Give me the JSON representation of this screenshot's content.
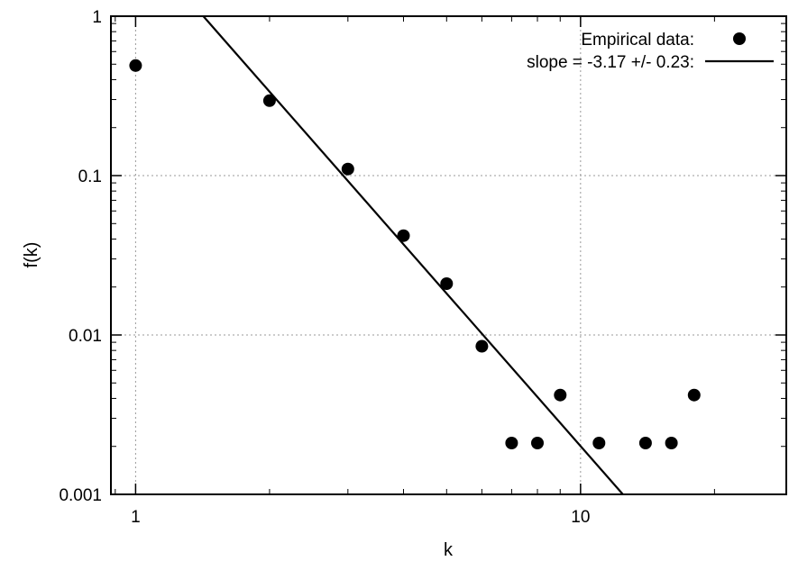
{
  "chart_data": {
    "type": "scatter",
    "title": "",
    "xlabel": "k",
    "ylabel": "f(k)",
    "x_scale": "log",
    "y_scale": "log",
    "xlim": [
      0.88,
      29
    ],
    "ylim": [
      0.001,
      1
    ],
    "grid": true,
    "legend_position": "top-right",
    "x_ticks": [
      {
        "value": 1,
        "label": "1"
      },
      {
        "value": 10,
        "label": "10"
      }
    ],
    "y_ticks": [
      {
        "value": 1,
        "label": "1"
      },
      {
        "value": 0.1,
        "label": "0.1"
      },
      {
        "value": 0.01,
        "label": "0.01"
      },
      {
        "value": 0.001,
        "label": "0.001"
      }
    ],
    "series": [
      {
        "name": "Empirical data:",
        "kind": "points",
        "color": "#000000",
        "x": [
          1,
          2,
          3,
          4,
          5,
          6,
          7,
          8,
          9,
          11,
          14,
          16,
          18
        ],
        "y": [
          0.49,
          0.295,
          0.11,
          0.042,
          0.021,
          0.0085,
          0.0021,
          0.0021,
          0.0042,
          0.0021,
          0.0021,
          0.0021,
          0.0042
        ]
      },
      {
        "name": "slope = -3.17 +/- 0.23:",
        "kind": "line",
        "color": "#000000",
        "x": [
          1.42,
          12.45
        ],
        "y": [
          1.0,
          0.001
        ]
      }
    ]
  }
}
